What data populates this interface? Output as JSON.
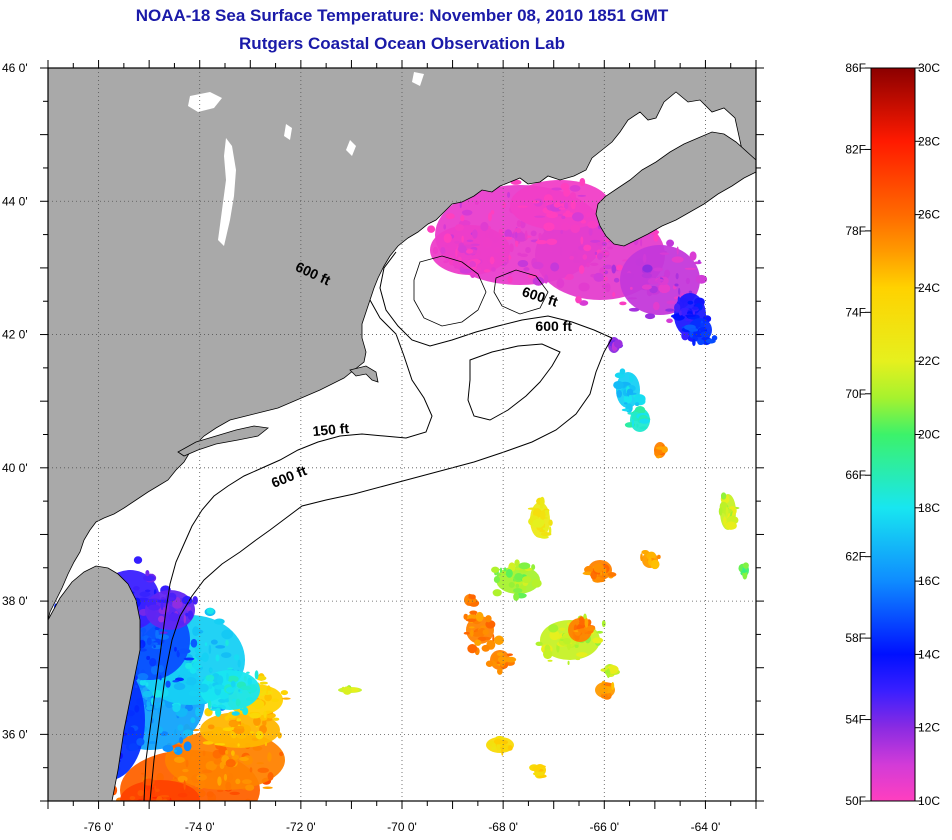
{
  "title": {
    "line1": "NOAA-18 Sea Surface Temperature:  November 08, 2010 1851 GMT",
    "line2": "Rutgers Coastal Ocean Observation Lab"
  },
  "map": {
    "lon_range": [
      -77,
      -63
    ],
    "lat_range": [
      35,
      46
    ],
    "lon_ticks": [
      {
        "value": -76,
        "label": "-76 0'"
      },
      {
        "value": -74,
        "label": "-74 0'"
      },
      {
        "value": -72,
        "label": "-72 0'"
      },
      {
        "value": -70,
        "label": "-70 0'"
      },
      {
        "value": -68,
        "label": "-68 0'"
      },
      {
        "value": -66,
        "label": "-66 0'"
      },
      {
        "value": -64,
        "label": "-64 0'"
      }
    ],
    "lat_ticks": [
      {
        "value": 46,
        "label": "46 0'"
      },
      {
        "value": 44,
        "label": "44 0'"
      },
      {
        "value": 42,
        "label": "42 0'"
      },
      {
        "value": 40,
        "label": "40 0'"
      },
      {
        "value": 38,
        "label": "38 0'"
      },
      {
        "value": 36,
        "label": "36 0'"
      }
    ],
    "contour_labels": [
      {
        "text": "600 ft",
        "lon": -71.8,
        "lat": 42.85,
        "rotate": 25
      },
      {
        "text": "600 ft",
        "lon": -67.3,
        "lat": 42.5,
        "rotate": 18
      },
      {
        "text": "600 ft",
        "lon": -67.0,
        "lat": 42.05,
        "rotate": 0
      },
      {
        "text": "150 ft",
        "lon": -71.4,
        "lat": 40.5,
        "rotate": -5
      },
      {
        "text": "600 ft",
        "lon": -72.2,
        "lat": 39.8,
        "rotate": -22
      }
    ],
    "colors": {
      "land": "#a9a9a9",
      "ocean": "#ffffff",
      "grid": "#555555"
    }
  },
  "colorbar": {
    "f_labels": [
      "86F",
      "82F",
      "78F",
      "74F",
      "70F",
      "66F",
      "62F",
      "58F",
      "54F",
      "50F"
    ],
    "c_labels": [
      "30C",
      "28C",
      "26C",
      "24C",
      "22C",
      "20C",
      "18C",
      "16C",
      "14C",
      "12C",
      "10C"
    ],
    "c_range": [
      10,
      30
    ],
    "stops": [
      {
        "c": 10,
        "color": "#ff3fbf"
      },
      {
        "c": 11,
        "color": "#d23bd8"
      },
      {
        "c": 12,
        "color": "#8a2be2"
      },
      {
        "c": 13,
        "color": "#3a1fff"
      },
      {
        "c": 14,
        "color": "#0010ff"
      },
      {
        "c": 16,
        "color": "#0f8cff"
      },
      {
        "c": 18,
        "color": "#18e6f0"
      },
      {
        "c": 20,
        "color": "#3cf26a"
      },
      {
        "c": 21,
        "color": "#a6f22e"
      },
      {
        "c": 22,
        "color": "#e6f01e"
      },
      {
        "c": 24,
        "color": "#ffd200"
      },
      {
        "c": 25,
        "color": "#ff9a00"
      },
      {
        "c": 26,
        "color": "#ff6a00"
      },
      {
        "c": 28,
        "color": "#ff1a00"
      },
      {
        "c": 30,
        "color": "#8b0000"
      }
    ]
  }
}
